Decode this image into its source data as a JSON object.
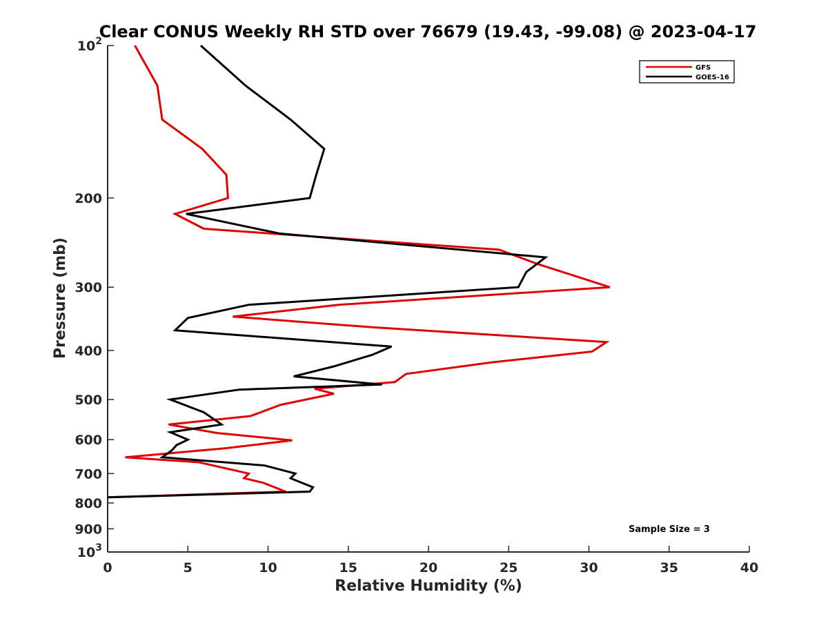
{
  "chart_data": {
    "type": "line",
    "title": "Clear CONUS Weekly RH STD over 76679 (19.43, -99.08) @ 2023-04-17",
    "xlabel": "Relative Humidity (%)",
    "ylabel": "Pressure (mb)",
    "xlim": [
      0,
      40
    ],
    "ylim": [
      100,
      1000
    ],
    "y_scale": "log",
    "y_reversed": true,
    "x_ticks": [
      "0",
      "5",
      "10",
      "15",
      "20",
      "25",
      "30",
      "35",
      "40"
    ],
    "y_ticks": [
      {
        "value": 100,
        "base": "10",
        "exp": "2"
      },
      {
        "value": 200,
        "label": "200"
      },
      {
        "value": 300,
        "label": "300"
      },
      {
        "value": 400,
        "label": "400"
      },
      {
        "value": 500,
        "label": "500"
      },
      {
        "value": 600,
        "label": "600"
      },
      {
        "value": 700,
        "label": "700"
      },
      {
        "value": 800,
        "label": "800"
      },
      {
        "value": 900,
        "label": "900"
      },
      {
        "value": 1000,
        "base": "10",
        "exp": "3"
      }
    ],
    "legend_position": "top-right",
    "annotation": "Sample Size = 3",
    "series": [
      {
        "name": "GFS",
        "color": "#e00000",
        "points": [
          [
            1.7,
            100
          ],
          [
            3.1,
            120
          ],
          [
            3.4,
            140
          ],
          [
            5.9,
            160
          ],
          [
            7.4,
            180
          ],
          [
            7.5,
            200
          ],
          [
            4.2,
            215
          ],
          [
            6.0,
            230
          ],
          [
            24.4,
            253
          ],
          [
            26.8,
            270
          ],
          [
            31.3,
            300
          ],
          [
            14.4,
            325
          ],
          [
            7.8,
            343
          ],
          [
            16.5,
            360
          ],
          [
            31.1,
            385
          ],
          [
            30.2,
            402
          ],
          [
            24.0,
            422
          ],
          [
            18.6,
            445
          ],
          [
            17.9,
            462
          ],
          [
            12.9,
            476
          ],
          [
            14.1,
            487
          ],
          [
            10.8,
            512
          ],
          [
            8.9,
            539
          ],
          [
            3.8,
            560
          ],
          [
            6.8,
            582
          ],
          [
            11.5,
            602
          ],
          [
            7.3,
            624
          ],
          [
            1.1,
            650
          ],
          [
            5.7,
            665
          ],
          [
            8.8,
            700
          ],
          [
            8.5,
            715
          ],
          [
            9.7,
            730
          ],
          [
            11.1,
            760
          ],
          [
            0,
            780
          ]
        ]
      },
      {
        "name": "GOES-16",
        "color": "#000000",
        "points": [
          [
            5.8,
            100
          ],
          [
            8.6,
            120
          ],
          [
            11.4,
            140
          ],
          [
            13.5,
            160
          ],
          [
            13.0,
            180
          ],
          [
            12.6,
            200
          ],
          [
            4.9,
            215
          ],
          [
            10.7,
            235
          ],
          [
            27.3,
            262
          ],
          [
            26.1,
            280
          ],
          [
            25.6,
            300
          ],
          [
            8.8,
            325
          ],
          [
            5.0,
            345
          ],
          [
            4.2,
            365
          ],
          [
            17.7,
            393
          ],
          [
            16.5,
            408
          ],
          [
            14.1,
            430
          ],
          [
            11.6,
            450
          ],
          [
            17.1,
            467
          ],
          [
            8.2,
            478
          ],
          [
            3.9,
            500
          ],
          [
            6.0,
            530
          ],
          [
            7.1,
            560
          ],
          [
            3.9,
            580
          ],
          [
            5.0,
            600
          ],
          [
            4.3,
            615
          ],
          [
            4.0,
            630
          ],
          [
            3.4,
            650
          ],
          [
            9.8,
            675
          ],
          [
            11.7,
            700
          ],
          [
            11.4,
            715
          ],
          [
            12.8,
            745
          ],
          [
            12.6,
            760
          ],
          [
            0,
            780
          ]
        ]
      }
    ]
  }
}
